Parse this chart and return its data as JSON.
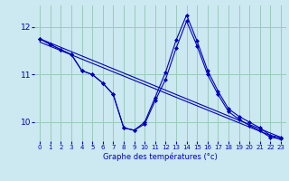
{
  "xlabel": "Graphe des températures (°c)",
  "background_color": "#cce8f0",
  "grid_color": "#99ccbb",
  "line_color": "#0000bb",
  "xlim": [
    -0.5,
    23.5
  ],
  "ylim": [
    9.6,
    12.45
  ],
  "yticks": [
    10,
    11,
    12
  ],
  "xticks": [
    0,
    1,
    2,
    3,
    4,
    5,
    6,
    7,
    8,
    9,
    10,
    11,
    12,
    13,
    14,
    15,
    16,
    17,
    18,
    19,
    20,
    21,
    22,
    23
  ],
  "series1_x": [
    0,
    1,
    2,
    3,
    4,
    5,
    6,
    7,
    8,
    9,
    10,
    11,
    12,
    13,
    14,
    15,
    16,
    17,
    18,
    19,
    20,
    21,
    22,
    23
  ],
  "series1_y": [
    11.75,
    11.63,
    11.52,
    11.42,
    11.08,
    11.0,
    10.82,
    10.58,
    9.88,
    9.83,
    10.0,
    10.52,
    11.05,
    11.72,
    12.25,
    11.7,
    11.09,
    10.65,
    10.28,
    10.12,
    10.0,
    9.88,
    9.72,
    9.68
  ],
  "series2_x": [
    0,
    1,
    2,
    3,
    4,
    5,
    6,
    7,
    8,
    9,
    10,
    11,
    12,
    13,
    14,
    15,
    16,
    17,
    18,
    19,
    20,
    21,
    22,
    23
  ],
  "series2_y": [
    11.75,
    11.63,
    11.52,
    11.42,
    11.08,
    11.0,
    10.82,
    10.58,
    9.88,
    9.83,
    9.96,
    10.45,
    10.9,
    11.55,
    12.12,
    11.6,
    11.0,
    10.58,
    10.22,
    10.06,
    9.93,
    9.82,
    9.68,
    9.65
  ],
  "trend1_x": [
    0,
    23
  ],
  "trend1_y": [
    11.75,
    9.68
  ],
  "trend2_x": [
    0,
    23
  ],
  "trend2_y": [
    11.68,
    9.63
  ]
}
